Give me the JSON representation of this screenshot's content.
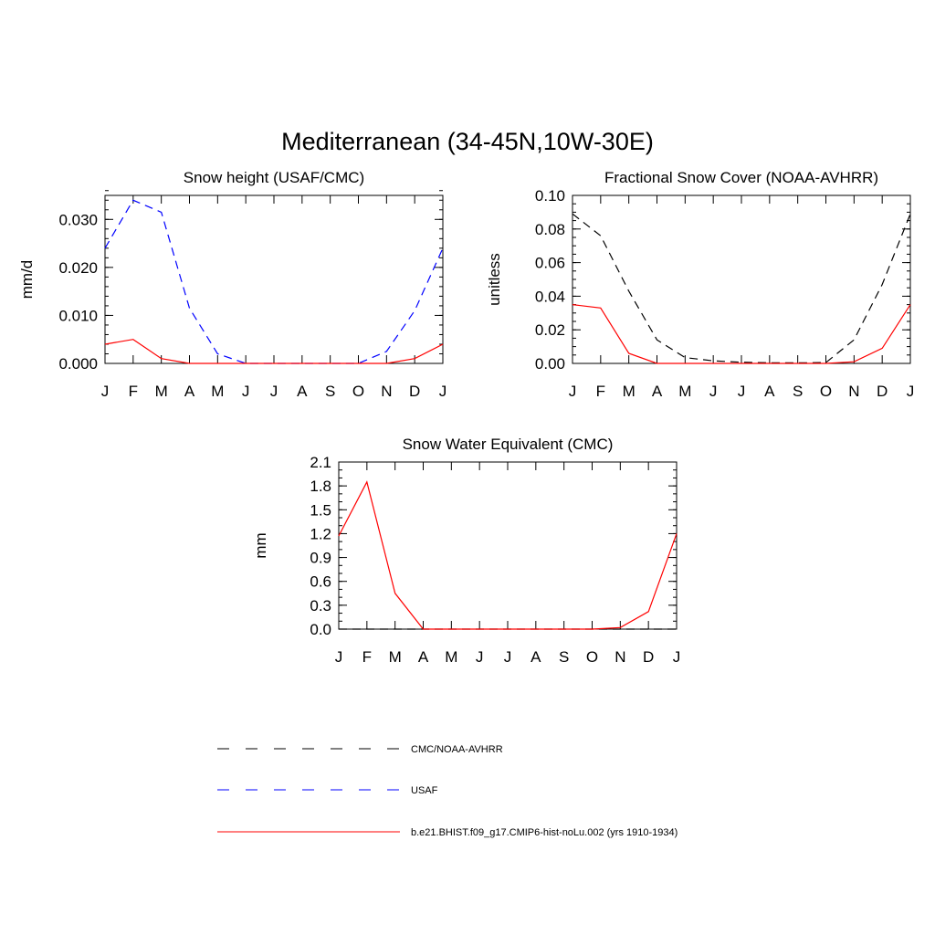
{
  "title": "Mediterranean (34-45N,10W-30E)",
  "colors": {
    "obs": "#000000",
    "usaf": "#0000ff",
    "model": "#ff0000"
  },
  "legend": {
    "items": [
      {
        "label": "CMC/NOAA-AVHRR",
        "color": "#000000",
        "style": "dashed"
      },
      {
        "label": "USAF",
        "color": "#0000ff",
        "style": "dashed"
      },
      {
        "label": "b.e21.BHIST.f09_g17.CMIP6-hist-noLu.002 (yrs 1910-1934)",
        "color": "#ff0000",
        "style": "solid"
      }
    ]
  },
  "chart_data": [
    {
      "type": "line",
      "title": "Snow height (USAF/CMC)",
      "xlabel": "",
      "ylabel": "mm/d",
      "categories": [
        "J",
        "F",
        "M",
        "A",
        "M",
        "J",
        "J",
        "A",
        "S",
        "O",
        "N",
        "D",
        "J"
      ],
      "ylim": [
        0,
        0.035
      ],
      "yticks": [
        0,
        0.01,
        0.02,
        0.03
      ],
      "ytick_labels": [
        "0.000",
        "0.010",
        "0.020",
        "0.030"
      ],
      "yminor_step": 0.002,
      "series": [
        {
          "name": "USAF",
          "color": "#0000ff",
          "style": "dashed",
          "values": [
            0.024,
            0.034,
            0.0315,
            0.0115,
            0.002,
            0,
            0,
            0,
            0,
            0,
            0.0025,
            0.011,
            0.024
          ]
        },
        {
          "name": "b.e21.BHIST.f09_g17.CMIP6-hist-noLu.002 (yrs 1910-1934)",
          "color": "#ff0000",
          "style": "solid",
          "values": [
            0.004,
            0.005,
            0.001,
            0,
            0,
            0,
            0,
            0,
            0,
            0,
            0,
            0.001,
            0.004
          ]
        }
      ]
    },
    {
      "type": "line",
      "title": "Fractional Snow Cover (NOAA-AVHRR)",
      "xlabel": "",
      "ylabel": "unitless",
      "categories": [
        "J",
        "F",
        "M",
        "A",
        "M",
        "J",
        "J",
        "A",
        "S",
        "O",
        "N",
        "D",
        "J"
      ],
      "ylim": [
        0,
        0.1
      ],
      "yticks": [
        0,
        0.02,
        0.04,
        0.06,
        0.08,
        0.1
      ],
      "ytick_labels": [
        "0.00",
        "0.02",
        "0.04",
        "0.06",
        "0.08",
        "0.10"
      ],
      "yminor_step": 0.005,
      "series": [
        {
          "name": "CMC/NOAA-AVHRR",
          "color": "#000000",
          "style": "dashed",
          "values": [
            0.089,
            0.076,
            0.043,
            0.014,
            0.0035,
            0.0015,
            0.0007,
            0.0004,
            0.0003,
            0.0005,
            0.014,
            0.047,
            0.089
          ]
        },
        {
          "name": "b.e21.BHIST.f09_g17.CMIP6-hist-noLu.002 (yrs 1910-1934)",
          "color": "#ff0000",
          "style": "solid",
          "values": [
            0.035,
            0.033,
            0.006,
            0,
            0,
            0,
            0,
            0,
            0,
            0,
            0.001,
            0.009,
            0.035
          ]
        }
      ]
    },
    {
      "type": "line",
      "title": "Snow Water Equivalent (CMC)",
      "xlabel": "",
      "ylabel": "mm",
      "categories": [
        "J",
        "F",
        "M",
        "A",
        "M",
        "J",
        "J",
        "A",
        "S",
        "O",
        "N",
        "D",
        "J"
      ],
      "ylim": [
        0,
        2.1
      ],
      "yticks": [
        0,
        0.3,
        0.6,
        0.9,
        1.2,
        1.5,
        1.8,
        2.1
      ],
      "ytick_labels": [
        "0.0",
        "0.3",
        "0.6",
        "0.9",
        "1.2",
        "1.5",
        "1.8",
        "2.1"
      ],
      "yminor_step": 0.1,
      "series": [
        {
          "name": "CMC/NOAA-AVHRR",
          "color": "#000000",
          "style": "dashed",
          "values": [
            0,
            0,
            0,
            0,
            0,
            0,
            0,
            0,
            0,
            0,
            0,
            0,
            0
          ]
        },
        {
          "name": "b.e21.BHIST.f09_g17.CMIP6-hist-noLu.002 (yrs 1910-1934)",
          "color": "#ff0000",
          "style": "solid",
          "values": [
            1.17,
            1.85,
            0.45,
            0,
            0,
            0,
            0,
            0,
            0,
            0,
            0.02,
            0.22,
            1.2
          ]
        }
      ]
    }
  ]
}
